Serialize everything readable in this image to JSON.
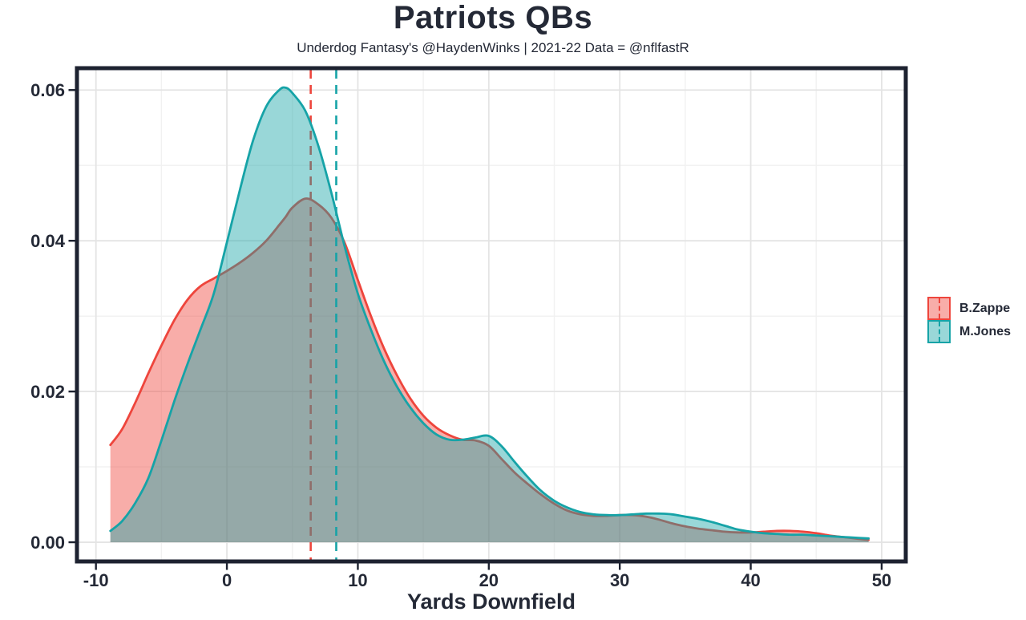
{
  "header": {
    "title": "Patriots QBs",
    "subtitle": "Underdog Fantasy's @HaydenWinks | 2021-22 Data = @nflfastR"
  },
  "colors": {
    "zappe": "#EE453C",
    "jones": "#16A3A7",
    "fill_opacity": 0.44,
    "text": "#242936",
    "panel_border": "#1D2230",
    "grid_major": "#E4E4E4",
    "grid_minor": "#F1F1F1",
    "background": "#FFFFFF"
  },
  "axes": {
    "x": {
      "label": "Yards Downfield",
      "tick_labels": [
        "-10",
        "0",
        "10",
        "20",
        "30",
        "40",
        "50"
      ],
      "tick_values": [
        -10,
        0,
        10,
        20,
        30,
        40,
        50
      ],
      "minor_tick_values": [
        -5,
        5,
        15,
        25,
        35,
        45
      ],
      "range": [
        -11.45,
        51.84
      ]
    },
    "y": {
      "label": "",
      "tick_labels": [
        "0.00",
        "0.02",
        "0.04",
        "0.06"
      ],
      "tick_values": [
        0,
        0.02,
        0.04,
        0.06
      ],
      "minor_tick_values": [
        0.01,
        0.03,
        0.05
      ],
      "range": [
        -0.00255,
        0.0629
      ]
    }
  },
  "legend": {
    "items": [
      {
        "id": "zappe",
        "label": "B.Zappe",
        "color": "#EE453C"
      },
      {
        "id": "jones",
        "label": "M.Jones",
        "color": "#16A3A7"
      }
    ]
  },
  "chart_data": {
    "type": "area",
    "subtype": "kernel-density",
    "title": "Patriots QBs",
    "subtitle": "Underdog Fantasy's @HaydenWinks | 2021-22 Data = @nflfastR",
    "xlabel": "Yards Downfield",
    "ylabel": "",
    "xlim": [
      -10,
      50
    ],
    "ylim": [
      0,
      0.06
    ],
    "grid": true,
    "legend_position": "right",
    "x": [
      -8.9,
      -8,
      -7,
      -6,
      -5,
      -4,
      -3,
      -2,
      -1,
      0,
      1,
      2,
      3,
      4,
      4.5,
      5,
      6,
      7,
      8,
      9,
      10,
      11,
      12,
      13,
      14,
      15,
      16,
      17,
      18,
      19,
      20,
      21,
      22,
      23,
      24,
      25,
      26,
      27,
      28,
      29,
      30,
      31,
      32,
      33,
      34,
      35,
      36,
      37,
      38,
      39,
      40,
      41,
      42,
      43,
      44,
      45,
      46,
      47,
      48,
      49
    ],
    "series": [
      {
        "id": "zappe",
        "name": "B.Zappe",
        "color": "#EE453C",
        "mean_x": 6.4,
        "values": [
          0.0129,
          0.015,
          0.0185,
          0.0224,
          0.0261,
          0.0295,
          0.0322,
          0.034,
          0.035,
          0.036,
          0.0371,
          0.0384,
          0.04,
          0.0421,
          0.0432,
          0.0444,
          0.0456,
          0.0448,
          0.043,
          0.0397,
          0.0348,
          0.03,
          0.0257,
          0.0221,
          0.0191,
          0.0168,
          0.0152,
          0.0142,
          0.0136,
          0.0135,
          0.0128,
          0.011,
          0.0092,
          0.0077,
          0.0063,
          0.0051,
          0.0042,
          0.0037,
          0.0035,
          0.0035,
          0.0036,
          0.0036,
          0.0034,
          0.003,
          0.0025,
          0.0021,
          0.0018,
          0.0016,
          0.0014,
          0.0013,
          0.0013,
          0.0014,
          0.0015,
          0.0015,
          0.0014,
          0.0012,
          0.0009,
          0.0007,
          0.0005,
          0.0003
        ]
      },
      {
        "id": "jones",
        "name": "M.Jones",
        "color": "#16A3A7",
        "mean_x": 8.35,
        "values": [
          0.0015,
          0.0028,
          0.0052,
          0.0085,
          0.0135,
          0.0188,
          0.0237,
          0.0283,
          0.033,
          0.0398,
          0.0468,
          0.0533,
          0.0578,
          0.06,
          0.0603,
          0.0596,
          0.0572,
          0.0525,
          0.0462,
          0.0392,
          0.033,
          0.0282,
          0.024,
          0.0206,
          0.0179,
          0.0158,
          0.0143,
          0.0136,
          0.0136,
          0.0139,
          0.0141,
          0.0127,
          0.0106,
          0.0086,
          0.0068,
          0.0055,
          0.0046,
          0.004,
          0.0037,
          0.0036,
          0.0036,
          0.0037,
          0.0038,
          0.0038,
          0.0037,
          0.0034,
          0.0031,
          0.0027,
          0.0022,
          0.0017,
          0.0014,
          0.0012,
          0.0011,
          0.001,
          0.001,
          0.0009,
          0.0008,
          0.0007,
          0.0006,
          0.0005
        ]
      }
    ]
  }
}
